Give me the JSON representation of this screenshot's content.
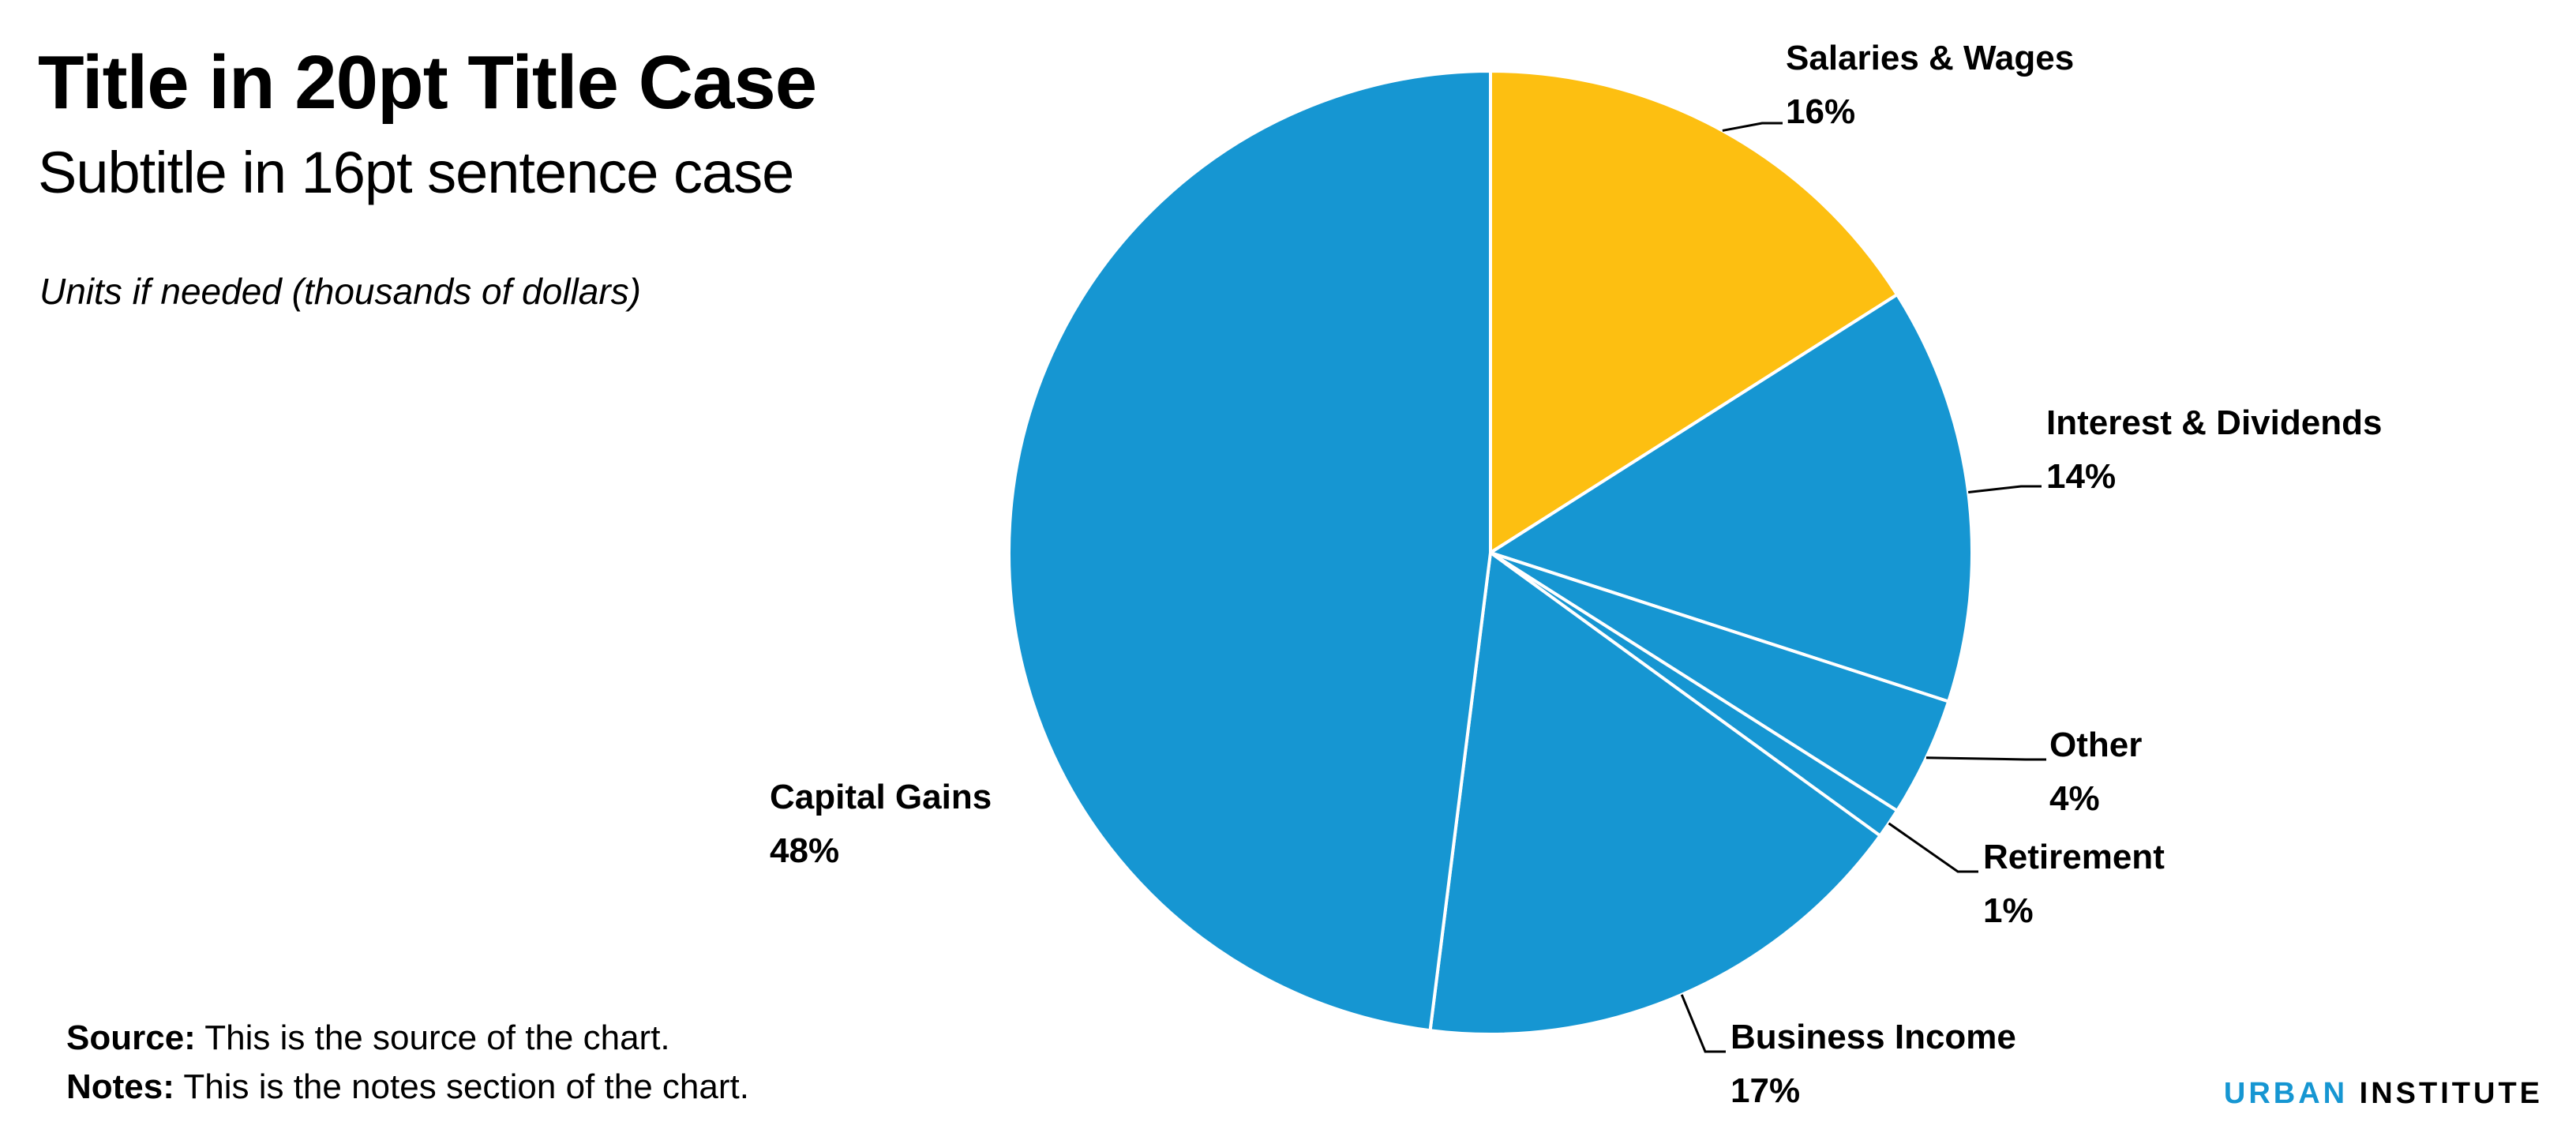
{
  "header": {
    "title": "Title in 20pt Title Case",
    "subtitle": "Subtitle in 16pt sentence case",
    "units": "Units if needed (thousands of dollars)"
  },
  "footer": {
    "source_label": "Source:",
    "source_text": "This is the source of the chart.",
    "notes_label": "Notes:",
    "notes_text": "This is the notes section of the chart."
  },
  "brand": {
    "part1": "URBAN",
    "part2": "INSTITUTE"
  },
  "colors": {
    "primary": "#1696d2",
    "highlight": "#fdbf11",
    "divider": "#ffffff"
  },
  "chart_data": {
    "type": "pie",
    "title": "Title in 20pt Title Case",
    "subtitle": "Subtitle in 16pt sentence case",
    "start_angle_deg": 0,
    "direction": "clockwise",
    "slices": [
      {
        "label": "Salaries & Wages",
        "value": 16,
        "display": "16%",
        "color": "#fdbf11"
      },
      {
        "label": "Interest & Dividends",
        "value": 14,
        "display": "14%",
        "color": "#1696d2"
      },
      {
        "label": "Other",
        "value": 4,
        "display": "4%",
        "color": "#1696d2"
      },
      {
        "label": "Retirement",
        "value": 1,
        "display": "1%",
        "color": "#1696d2"
      },
      {
        "label": "Business Income",
        "value": 17,
        "display": "17%",
        "color": "#1696d2"
      },
      {
        "label": "Capital Gains",
        "value": 48,
        "display": "48%",
        "color": "#1696d2"
      }
    ]
  }
}
